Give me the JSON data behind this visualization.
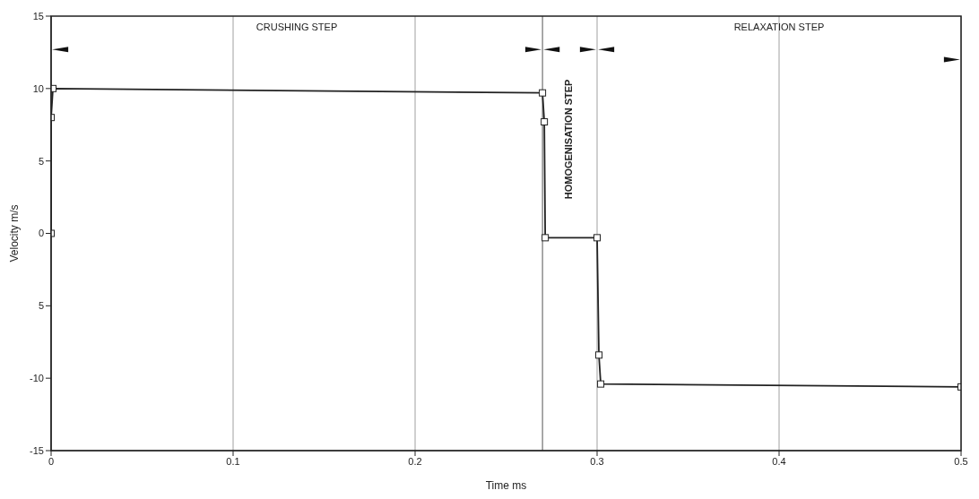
{
  "chart_data": {
    "type": "line",
    "xlabel": "Time ms",
    "ylabel": "Velocity m/s",
    "x": [
      0,
      0,
      0.001,
      0.27,
      0.271,
      0.2715,
      0.3,
      0.301,
      0.302,
      0.5
    ],
    "series": [
      {
        "color": "#222222",
        "values": [
          0,
          8,
          10,
          9.7,
          7.7,
          -0.3,
          -0.3,
          -8.4,
          -10.4,
          -10.6
        ]
      }
    ],
    "xlim": [
      0,
      0.5
    ],
    "xticks": [
      0,
      0.1,
      0.2,
      0.3,
      0.4,
      0.5
    ],
    "ylim": [
      -15,
      15
    ],
    "yticks": [
      -15,
      -10,
      {
        "value": -5,
        "label": "5"
      },
      0,
      5,
      10,
      15
    ],
    "grid": "x",
    "marker": "square",
    "line_style": "solid",
    "ref_lines": [
      {
        "axis": "x",
        "value": 0.27,
        "color": "#555555"
      }
    ],
    "annotations": [
      "CRUSHING STEP",
      "HOMOGENISATION STEP",
      "RELAXATION STEP"
    ]
  }
}
